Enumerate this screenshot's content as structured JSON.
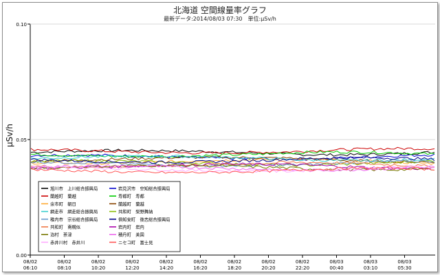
{
  "chart_data": {
    "type": "line",
    "title": "北海道 空間線量率グラフ",
    "subtitle": "最新データ:2014/08/03 07:30　単位:μSv/h",
    "xlabel": "",
    "ylabel": "μSv/h",
    "ylim": [
      0.0,
      0.1
    ],
    "y_ticks": [
      "0.00",
      "0.05",
      "0.10"
    ],
    "x_range": [
      "2014/08/02 06:10",
      "2014/08/03 07:30"
    ],
    "x_ticks": [
      [
        "08/02",
        "06:10"
      ],
      [
        "08/02",
        "08:10"
      ],
      [
        "08/02",
        "10:20"
      ],
      [
        "08/02",
        "12:20"
      ],
      [
        "08/02",
        "14:20"
      ],
      [
        "08/02",
        "16:20"
      ],
      [
        "08/02",
        "18:20"
      ],
      [
        "08/02",
        "20:20"
      ],
      [
        "08/02",
        "22:20"
      ],
      [
        "08/03",
        "00:40"
      ],
      [
        "08/03",
        "03:10"
      ],
      [
        "08/03",
        "05:30"
      ]
    ],
    "grid": false,
    "legend_position": "bottom-left",
    "series": [
      {
        "name": "旭川市　上川総合振興局",
        "color": "#000000",
        "level": 0.0445
      },
      {
        "name": "岩見沢市　空知総合振興局",
        "color": "#0000cc",
        "level": 0.0425
      },
      {
        "name": "蘭越町　蘭越",
        "color": "#cc0000",
        "level": 0.045
      },
      {
        "name": "寿都町　寿都",
        "color": "#00cc00",
        "level": 0.0435
      },
      {
        "name": "余市町　朝日",
        "color": "#ffaa33",
        "level": 0.0405
      },
      {
        "name": "蘭越町　蘭越",
        "color": "#884400",
        "level": 0.0415
      },
      {
        "name": "網走市　網走総合振興局",
        "color": "#33cccc",
        "level": 0.042
      },
      {
        "name": "共和町　梨野舞納",
        "color": "#88bb00",
        "level": 0.04
      },
      {
        "name": "稚内市　宗谷総合振興局",
        "color": "#6699cc",
        "level": 0.0395
      },
      {
        "name": "俱知安町　後志総合振興局",
        "color": "#000088",
        "level": 0.041
      },
      {
        "name": "共和町　南幌似",
        "color": "#ee7744",
        "level": 0.039
      },
      {
        "name": "岩内町　岩内",
        "color": "#aa00aa",
        "level": 0.0385
      },
      {
        "name": "泊村　茶津",
        "color": "#777700",
        "level": 0.038
      },
      {
        "name": "積丹町　美国",
        "color": "#ee66ee",
        "level": 0.0378
      },
      {
        "name": "赤井川村　赤井川",
        "color": "#ffaaff",
        "level": 0.0372
      },
      {
        "name": "ニセコ町　富士見",
        "color": "#ff5555",
        "level": 0.0365
      }
    ]
  }
}
